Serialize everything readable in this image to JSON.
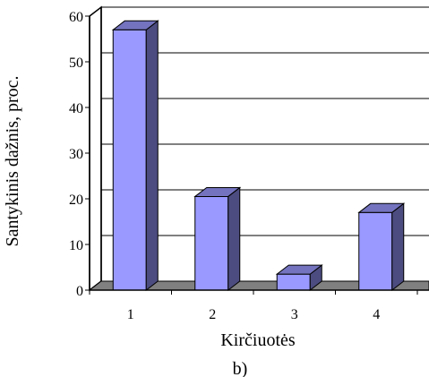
{
  "chart_data": {
    "type": "bar",
    "categories": [
      "1",
      "2",
      "3",
      "4"
    ],
    "values": [
      57,
      20.5,
      3.5,
      17
    ],
    "ylim": [
      0,
      60
    ],
    "yticks": [
      "0",
      "10",
      "20",
      "30",
      "40",
      "50",
      "60"
    ],
    "xlabel": "Kirčiuotės",
    "ylabel": "Santykinis dažnis, proc.",
    "caption": "b)",
    "grid": true,
    "legend": "none",
    "colors": {
      "bar_front": "#9999ff",
      "bar_side": "#4c4c80",
      "bar_top": "#7373bf",
      "floor": "#808080",
      "axis": "#000000"
    }
  }
}
